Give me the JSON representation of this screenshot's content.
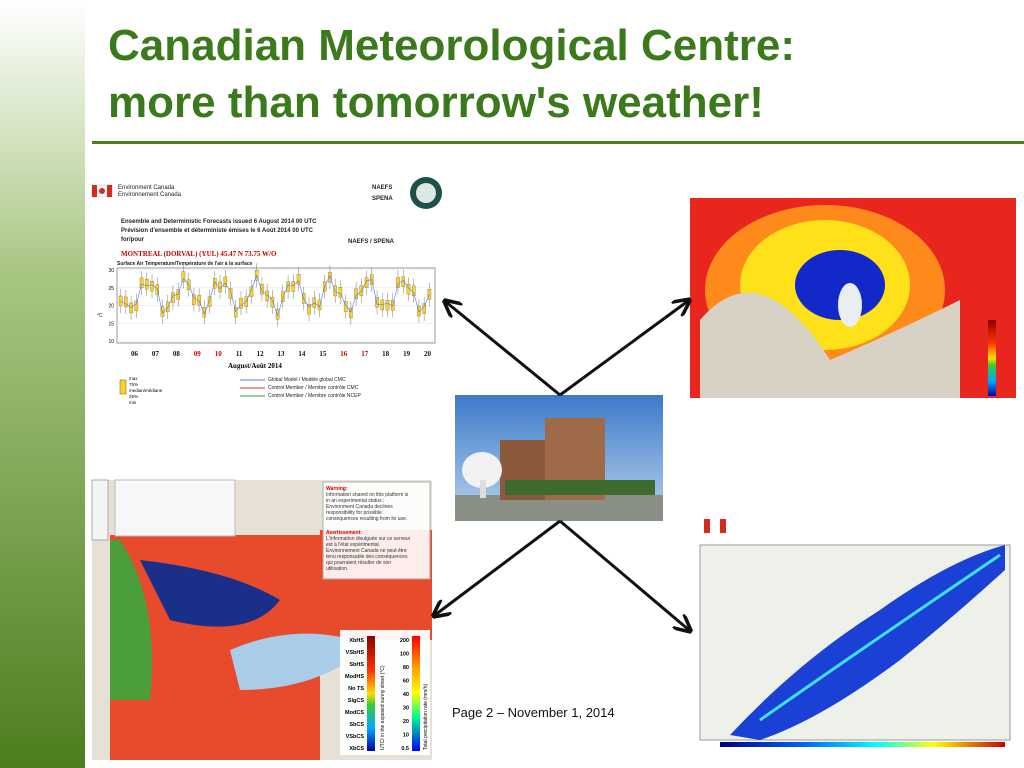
{
  "slide": {
    "title_lines": [
      "Canadian Meteorological Centre:",
      "more than tomorrow's weather!"
    ],
    "footer": "Page 2 – November 1, 2014",
    "meteogram": {
      "agency": [
        "Environment Canada",
        "Environnement Canada"
      ],
      "logo": [
        "NAEFS",
        "SPENA"
      ],
      "header": [
        "Ensemble and Deterministic Forecasts issued 6 August 2014 00 UTC",
        "Prévision d'ensemble et déterministe émises le 6 Août 2014 00 UTC",
        "for/pour"
      ],
      "right_label": "NAEFS / SPENA",
      "station": "MONTREAL (DORVAL) (YUL) 45.47 N  73.75 W/O",
      "plot_title": "Surface Air Temperature/Température de l'air à la surface",
      "yticks": [
        10,
        15,
        20,
        25,
        30
      ],
      "y_unit": "°C",
      "dates": [
        "06",
        "07",
        "08",
        "09",
        "10",
        "11",
        "12",
        "13",
        "14",
        "15",
        "16",
        "17",
        "18",
        "19",
        "20"
      ],
      "x_label": "August/Août 2014",
      "box_legend": [
        "max",
        "75%",
        "median/médiane",
        "25%",
        "min"
      ],
      "line_legend": [
        "Global Model / Modèle global CMC",
        "Control Member / Membre contrôle CMC",
        "Control Member / Membre contrôle NCEP"
      ]
    },
    "utci_map": {
      "warning": [
        "Warning:",
        "Information shared on this platform is",
        "in an experimental status ;",
        "Environment Canada declines",
        "responsibility for possible",
        "consequences resulting from its use."
      ],
      "avertissement": [
        "Avertissement:",
        "L'information divulguée sur ce serveur",
        "est à l'état expérimental.",
        "Environnement Canada ne peut être",
        "tenu responsable des conséquences",
        "qui pourraient résulter de son",
        "utilisation."
      ],
      "stress_labels": [
        "XbHS",
        "VSbHS",
        "SbHS",
        "ModHS",
        "No TS",
        "SlgCS",
        "ModCS",
        "SbCS",
        "VSbCS",
        "XbCS"
      ],
      "precip_labels": [
        "200",
        "100",
        "80",
        "60",
        "40",
        "30",
        "20",
        "10",
        "0.5"
      ],
      "utci_axis": "UTCI in the exposed sunny street (°C)",
      "precip_axis": "Total precipitation rate (mm/h)"
    }
  }
}
